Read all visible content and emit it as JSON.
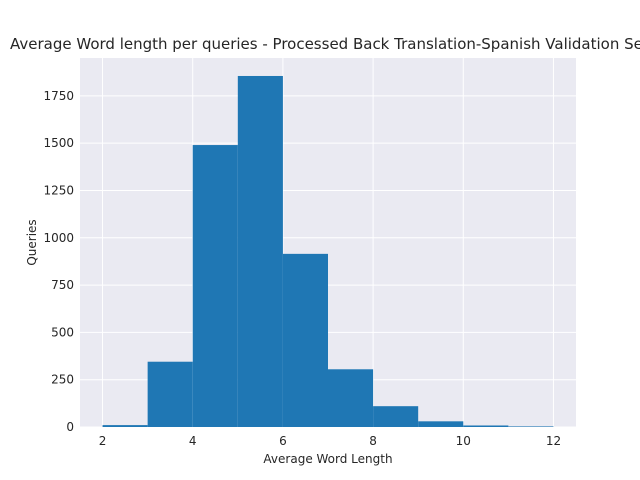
{
  "chart_data": {
    "type": "histogram",
    "title": "Average Word length per queries - Processed Back Translation-Spanish Validation Set",
    "xlabel": "Average Word Length",
    "ylabel": "Queries",
    "xlim": [
      1.5,
      12.5
    ],
    "ylim": [
      0,
      1950
    ],
    "xticks": [
      2,
      4,
      6,
      8,
      10,
      12
    ],
    "yticks": [
      0,
      250,
      500,
      750,
      1000,
      1250,
      1500,
      1750
    ],
    "bins": [
      {
        "start": 2,
        "end": 3,
        "count": 10
      },
      {
        "start": 3,
        "end": 4,
        "count": 345
      },
      {
        "start": 4,
        "end": 5,
        "count": 1490
      },
      {
        "start": 5,
        "end": 6,
        "count": 1855
      },
      {
        "start": 6,
        "end": 7,
        "count": 915
      },
      {
        "start": 7,
        "end": 8,
        "count": 305
      },
      {
        "start": 8,
        "end": 9,
        "count": 110
      },
      {
        "start": 9,
        "end": 10,
        "count": 30
      },
      {
        "start": 10,
        "end": 11,
        "count": 8
      },
      {
        "start": 11,
        "end": 12,
        "count": 3
      }
    ],
    "grid": true,
    "colors": {
      "bar": "#1f77b4",
      "background": "#eaeaf2",
      "grid": "#ffffff"
    }
  }
}
